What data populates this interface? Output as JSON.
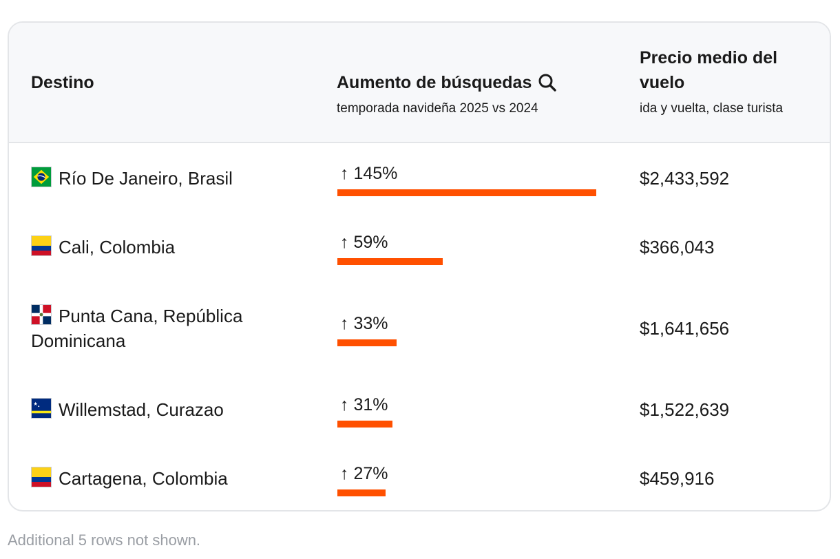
{
  "header": {
    "destino": "Destino",
    "aumento_title": "Aumento de búsquedas",
    "aumento_sub": "temporada navideña 2025 vs 2024",
    "precio_title": "Precio medio del vuelo",
    "precio_sub": "ida y vuelta, clase turista"
  },
  "colors": {
    "accent": "#ff5000",
    "header_bg": "#f7f8fa",
    "border": "#e3e5e8",
    "footnote": "#9a9ea4"
  },
  "rows": [
    {
      "destination": "Río De Janeiro, Brasil",
      "flag": "brazil-flag-icon",
      "increase": "↑ 145%",
      "increase_value": 145,
      "price": "$2,433,592"
    },
    {
      "destination": "Cali, Colombia",
      "flag": "colombia-flag-icon",
      "increase": "↑ 59%",
      "increase_value": 59,
      "price": "$366,043"
    },
    {
      "destination": "Punta Cana, República Dominicana",
      "flag": "dominican-republic-flag-icon",
      "increase": "↑ 33%",
      "increase_value": 33,
      "price": "$1,641,656"
    },
    {
      "destination": "Willemstad, Curazao",
      "flag": "curacao-flag-icon",
      "increase": "↑ 31%",
      "increase_value": 31,
      "price": "$1,522,639"
    },
    {
      "destination": "Cartagena, Colombia",
      "flag": "colombia-flag-icon",
      "increase": "↑ 27%",
      "increase_value": 27,
      "price": "$459,916"
    }
  ],
  "footnote": "Additional 5 rows not shown."
}
